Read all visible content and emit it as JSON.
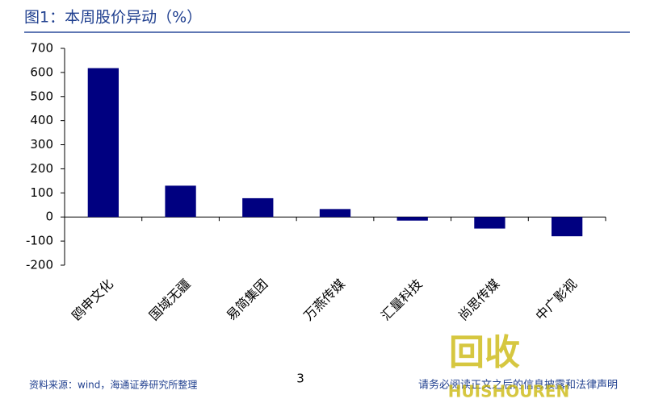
{
  "header": {
    "title": "图1：本周股价异动（%）"
  },
  "chart_data": {
    "type": "bar",
    "categories": [
      "鸥申文化",
      "国域无疆",
      "易简集团",
      "万燕传媒",
      "汇量科技",
      "尚思传媒",
      "中广影视"
    ],
    "values": [
      618,
      130,
      78,
      33,
      -15,
      -48,
      -80
    ],
    "color": "#000080",
    "ylim": [
      -200,
      700
    ],
    "yticks": [
      -200,
      -100,
      0,
      100,
      200,
      300,
      400,
      500,
      600,
      700
    ],
    "grid": false
  },
  "footer": {
    "source": "资料来源：wind，海通证券研究所整理",
    "page": "3",
    "disclaimer": "请务必阅读正文之后的信息披露和法律声明"
  },
  "watermark": {
    "mark": "回收",
    "text": "HUISHOUREN"
  }
}
